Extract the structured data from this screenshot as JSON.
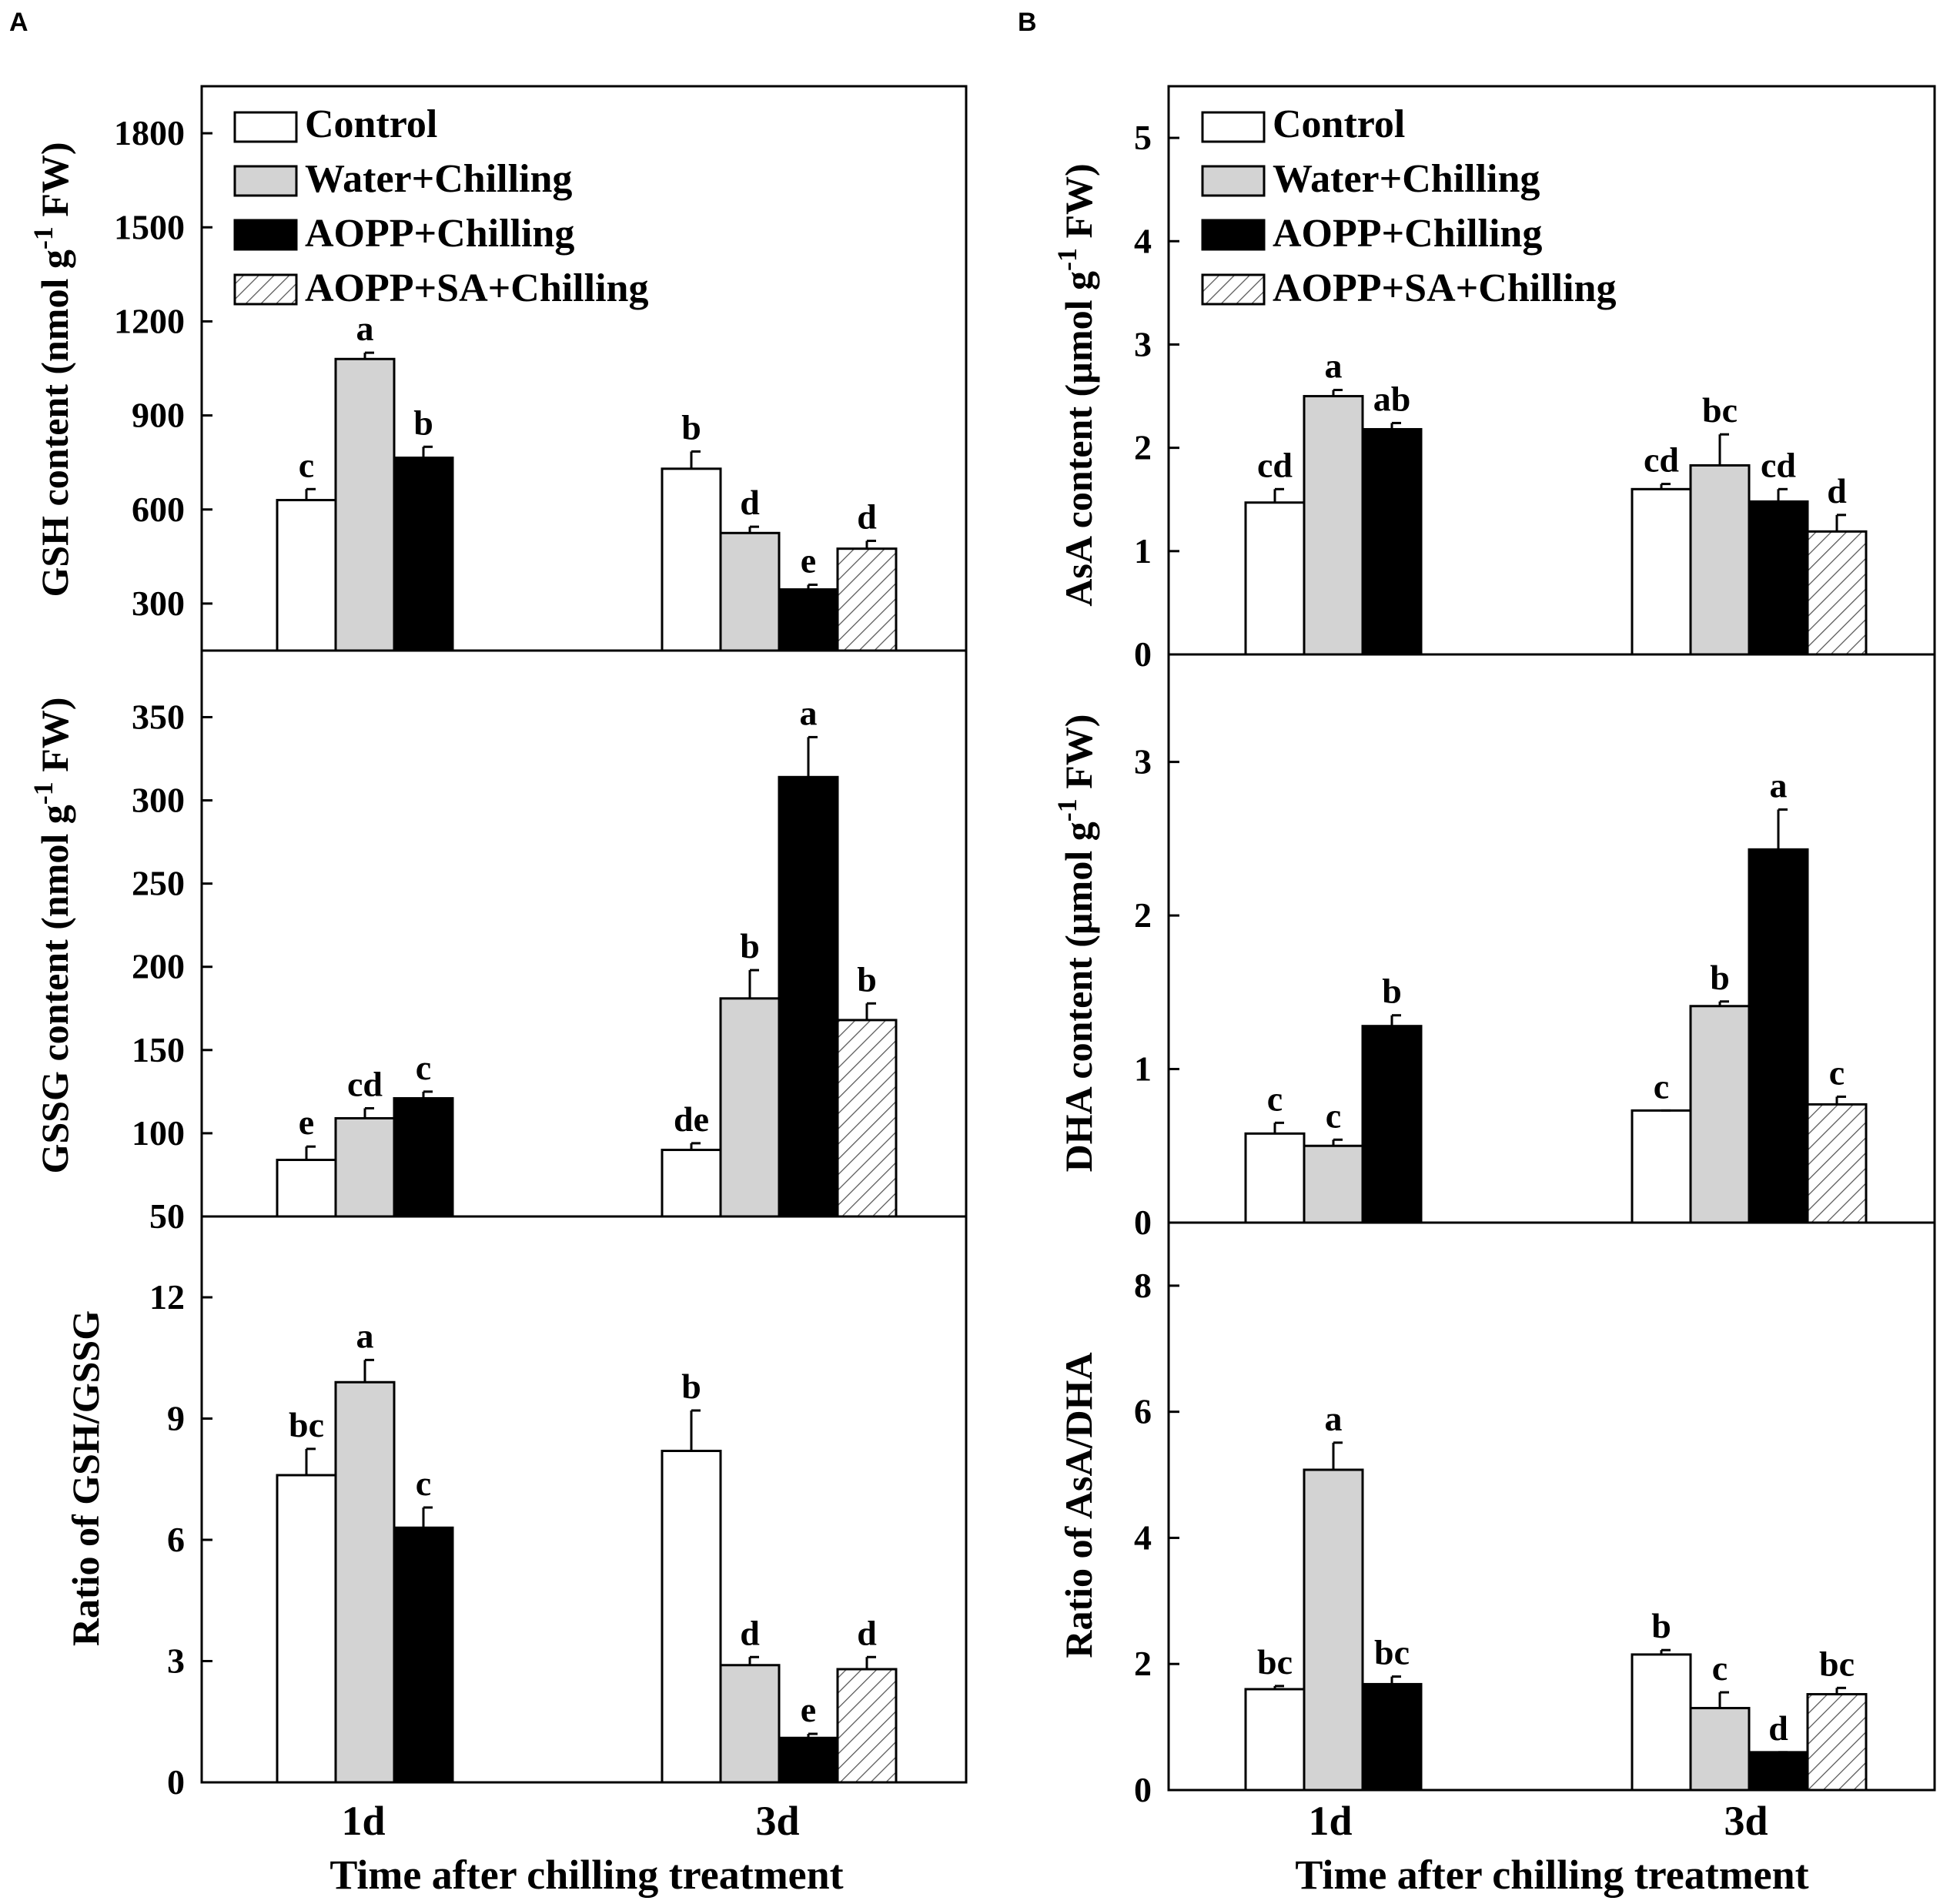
{
  "panels": [
    "A",
    "B"
  ],
  "x_label": "Time after chilling treatment",
  "legend": [
    "Control",
    "Water+Chilling",
    "AOPP+Chilling",
    "AOPP+SA+Chilling"
  ],
  "colors": {
    "Control": "#ffffff",
    "Water+Chilling": "#d3d3d3",
    "AOPP+Chilling": "#000000",
    "AOPP+SA+Chilling": "hatch"
  },
  "chart_data": [
    {
      "type": "bar",
      "panel": "A",
      "position": "top",
      "categories": [
        "1d",
        "3d"
      ],
      "ylabel": "GSH content (nmol g-1 FW)",
      "ylim": [
        150,
        1950
      ],
      "yticks": [
        300,
        600,
        900,
        1200,
        1500,
        1800
      ],
      "series": [
        {
          "name": "Control",
          "values": [
            630,
            730
          ],
          "errors": [
            35,
            55
          ],
          "letters": [
            "c",
            "b"
          ]
        },
        {
          "name": "Water+Chilling",
          "values": [
            1080,
            525
          ],
          "errors": [
            20,
            20
          ],
          "letters": [
            "a",
            "d"
          ]
        },
        {
          "name": "AOPP+Chilling",
          "values": [
            765,
            345
          ],
          "errors": [
            35,
            15
          ],
          "letters": [
            "b",
            "e"
          ]
        },
        {
          "name": "AOPP+SA+Chilling",
          "values": [
            null,
            475
          ],
          "errors": [
            null,
            25
          ],
          "letters": [
            null,
            "d"
          ]
        }
      ]
    },
    {
      "type": "bar",
      "panel": "A",
      "position": "middle",
      "categories": [
        "1d",
        "3d"
      ],
      "ylabel": "GSSG content (nmol g-1 FW)",
      "ylim": [
        50,
        390
      ],
      "yticks": [
        50,
        100,
        150,
        200,
        250,
        300,
        350
      ],
      "series": [
        {
          "name": "Control",
          "values": [
            84,
            90
          ],
          "errors": [
            8,
            4
          ],
          "letters": [
            "e",
            "de"
          ]
        },
        {
          "name": "Water+Chilling",
          "values": [
            109,
            181
          ],
          "errors": [
            6,
            17
          ],
          "letters": [
            "cd",
            "b"
          ]
        },
        {
          "name": "AOPP+Chilling",
          "values": [
            121,
            314
          ],
          "errors": [
            4,
            24
          ],
          "letters": [
            "c",
            "a"
          ]
        },
        {
          "name": "AOPP+SA+Chilling",
          "values": [
            null,
            168
          ],
          "errors": [
            null,
            10
          ],
          "letters": [
            null,
            "b"
          ]
        }
      ]
    },
    {
      "type": "bar",
      "panel": "A",
      "position": "bottom",
      "categories": [
        "1d",
        "3d"
      ],
      "ylabel": "Ratio of GSH/GSSG",
      "ylim": [
        0,
        14
      ],
      "yticks": [
        0,
        3,
        6,
        9,
        12
      ],
      "series": [
        {
          "name": "Control",
          "values": [
            7.6,
            8.2
          ],
          "errors": [
            0.65,
            1.0
          ],
          "letters": [
            "bc",
            "b"
          ]
        },
        {
          "name": "Water+Chilling",
          "values": [
            9.9,
            2.9
          ],
          "errors": [
            0.55,
            0.2
          ],
          "letters": [
            "a",
            "d"
          ]
        },
        {
          "name": "AOPP+Chilling",
          "values": [
            6.3,
            1.1
          ],
          "errors": [
            0.5,
            0.1
          ],
          "letters": [
            "c",
            "e"
          ]
        },
        {
          "name": "AOPP+SA+Chilling",
          "values": [
            null,
            2.8
          ],
          "errors": [
            null,
            0.3
          ],
          "letters": [
            null,
            "d"
          ]
        }
      ]
    },
    {
      "type": "bar",
      "panel": "B",
      "position": "top",
      "categories": [
        "1d",
        "3d"
      ],
      "ylabel": "AsA content (µmol g-1 FW)",
      "ylim": [
        0,
        5.5
      ],
      "yticks": [
        0,
        1,
        2,
        3,
        4,
        5
      ],
      "series": [
        {
          "name": "Control",
          "values": [
            1.47,
            1.6
          ],
          "errors": [
            0.13,
            0.05
          ],
          "letters": [
            "cd",
            "cd"
          ]
        },
        {
          "name": "Water+Chilling",
          "values": [
            2.5,
            1.83
          ],
          "errors": [
            0.06,
            0.3
          ],
          "letters": [
            "a",
            "bc"
          ]
        },
        {
          "name": "AOPP+Chilling",
          "values": [
            2.18,
            1.48
          ],
          "errors": [
            0.06,
            0.12
          ],
          "letters": [
            "ab",
            "cd"
          ]
        },
        {
          "name": "AOPP+SA+Chilling",
          "values": [
            null,
            1.19
          ],
          "errors": [
            null,
            0.16
          ],
          "letters": [
            null,
            "d"
          ]
        }
      ]
    },
    {
      "type": "bar",
      "panel": "B",
      "position": "middle",
      "categories": [
        "1d",
        "3d"
      ],
      "ylabel": "DHA content (µmol g-1 FW)",
      "ylim": [
        0,
        3.7
      ],
      "yticks": [
        0,
        1,
        2,
        3
      ],
      "series": [
        {
          "name": "Control",
          "values": [
            0.58,
            0.73
          ],
          "errors": [
            0.07,
            0.0
          ],
          "letters": [
            "c",
            "c"
          ]
        },
        {
          "name": "Water+Chilling",
          "values": [
            0.5,
            1.41
          ],
          "errors": [
            0.04,
            0.03
          ],
          "letters": [
            "c",
            "b"
          ]
        },
        {
          "name": "AOPP+Chilling",
          "values": [
            1.28,
            2.43
          ],
          "errors": [
            0.07,
            0.26
          ],
          "letters": [
            "b",
            "a"
          ]
        },
        {
          "name": "AOPP+SA+Chilling",
          "values": [
            null,
            0.77
          ],
          "errors": [
            null,
            0.05
          ],
          "letters": [
            null,
            "c"
          ]
        }
      ]
    },
    {
      "type": "bar",
      "panel": "B",
      "position": "bottom",
      "categories": [
        "1d",
        "3d"
      ],
      "ylabel": "Ratio of AsA/DHA",
      "ylim": [
        0,
        9
      ],
      "yticks": [
        0,
        2,
        4,
        6,
        8
      ],
      "series": [
        {
          "name": "Control",
          "values": [
            1.6,
            2.15
          ],
          "errors": [
            0.05,
            0.07
          ],
          "letters": [
            "bc",
            "b"
          ]
        },
        {
          "name": "Water+Chilling",
          "values": [
            5.08,
            1.3
          ],
          "errors": [
            0.43,
            0.25
          ],
          "letters": [
            "a",
            "c"
          ]
        },
        {
          "name": "AOPP+Chilling",
          "values": [
            1.68,
            0.6
          ],
          "errors": [
            0.12,
            0.0
          ],
          "letters": [
            "bc",
            "d"
          ]
        },
        {
          "name": "AOPP+SA+Chilling",
          "values": [
            null,
            1.52
          ],
          "errors": [
            null,
            0.1
          ],
          "letters": [
            null,
            "bc"
          ]
        }
      ]
    }
  ]
}
